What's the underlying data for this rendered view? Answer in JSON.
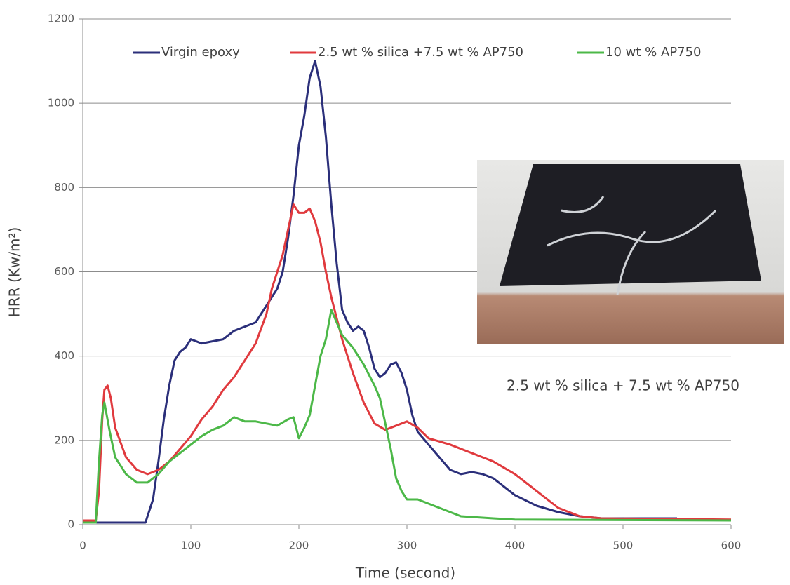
{
  "chart_data": {
    "type": "line",
    "xlabel": "Time (second)",
    "ylabel": "HRR (Kw/m²)",
    "annotation": "2.5 wt % silica + 7.5 wt % AP750",
    "xlim": [
      0,
      600
    ],
    "xticks": [
      0,
      100,
      200,
      300,
      400,
      500,
      600
    ],
    "ylim": [
      0,
      1200
    ],
    "yticks": [
      0,
      200,
      400,
      600,
      800,
      1000,
      1200
    ],
    "grid": true,
    "legend": "top",
    "series": [
      {
        "name": "Virgin epoxy",
        "color": "#2b2f7a",
        "x": [
          0,
          10,
          20,
          30,
          50,
          58,
          65,
          70,
          75,
          80,
          85,
          90,
          95,
          100,
          110,
          120,
          130,
          140,
          150,
          160,
          165,
          170,
          180,
          185,
          190,
          195,
          200,
          205,
          210,
          215,
          220,
          225,
          230,
          235,
          240,
          245,
          250,
          255,
          260,
          265,
          270,
          275,
          280,
          285,
          290,
          295,
          300,
          305,
          310,
          320,
          330,
          340,
          350,
          360,
          370,
          380,
          390,
          400,
          420,
          440,
          460,
          480,
          500,
          550
        ],
        "values": [
          5,
          5,
          5,
          5,
          5,
          5,
          60,
          150,
          250,
          330,
          390,
          410,
          420,
          440,
          430,
          435,
          440,
          460,
          470,
          480,
          500,
          520,
          560,
          600,
          680,
          780,
          900,
          970,
          1060,
          1100,
          1040,
          920,
          760,
          620,
          510,
          480,
          460,
          470,
          460,
          420,
          370,
          350,
          360,
          380,
          385,
          360,
          320,
          260,
          220,
          190,
          160,
          130,
          120,
          125,
          120,
          110,
          90,
          70,
          45,
          30,
          20,
          15,
          15,
          15
        ]
      },
      {
        "name": "2.5 wt % silica +7.5 wt % AP750",
        "color": "#e03a3e",
        "x": [
          0,
          12,
          15,
          18,
          20,
          23,
          26,
          30,
          40,
          50,
          60,
          70,
          80,
          90,
          100,
          110,
          120,
          130,
          140,
          150,
          160,
          170,
          175,
          180,
          185,
          190,
          195,
          200,
          205,
          210,
          215,
          220,
          225,
          230,
          240,
          250,
          260,
          270,
          280,
          290,
          300,
          310,
          320,
          340,
          360,
          380,
          400,
          420,
          440,
          460,
          480,
          600
        ],
        "values": [
          10,
          10,
          80,
          250,
          320,
          330,
          300,
          230,
          160,
          130,
          120,
          130,
          150,
          180,
          210,
          250,
          280,
          320,
          350,
          390,
          430,
          500,
          560,
          600,
          640,
          700,
          760,
          740,
          740,
          750,
          720,
          670,
          600,
          540,
          440,
          360,
          290,
          240,
          225,
          235,
          245,
          230,
          205,
          190,
          170,
          150,
          120,
          80,
          40,
          20,
          15,
          12
        ]
      },
      {
        "name": "10 wt % AP750",
        "color": "#4cb848",
        "x": [
          0,
          12,
          15,
          18,
          20,
          25,
          30,
          40,
          50,
          60,
          70,
          80,
          90,
          100,
          110,
          120,
          130,
          140,
          150,
          160,
          170,
          180,
          190,
          195,
          200,
          205,
          210,
          215,
          220,
          225,
          230,
          235,
          240,
          250,
          260,
          270,
          275,
          280,
          285,
          290,
          295,
          300,
          310,
          320,
          330,
          350,
          380,
          400,
          600
        ],
        "values": [
          5,
          5,
          150,
          260,
          290,
          220,
          160,
          120,
          100,
          100,
          120,
          150,
          170,
          190,
          210,
          225,
          235,
          255,
          245,
          245,
          240,
          235,
          250,
          255,
          205,
          230,
          260,
          330,
          400,
          440,
          510,
          480,
          450,
          420,
          380,
          330,
          300,
          240,
          180,
          110,
          80,
          60,
          60,
          50,
          40,
          20,
          15,
          12,
          10
        ]
      }
    ]
  }
}
